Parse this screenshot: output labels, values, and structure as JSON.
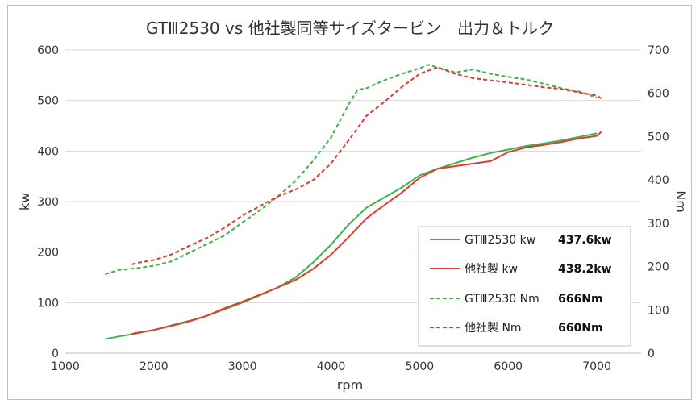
{
  "chart_data": {
    "type": "line",
    "title": "GTⅢ2530 vs 他社製同等サイズタービン　出力＆トルク",
    "xlabel": "rpm",
    "ylabel_left": "kw",
    "ylabel_right": "Nm",
    "xlim": [
      1000,
      7500
    ],
    "ylim_left": [
      0,
      600
    ],
    "ylim_right": [
      0,
      700
    ],
    "x_ticks": [
      "1000",
      "2000",
      "3000",
      "4000",
      "5000",
      "6000",
      "7000"
    ],
    "y_left_ticks": [
      "0",
      "100",
      "200",
      "300",
      "400",
      "500",
      "600"
    ],
    "y_right_ticks": [
      "0",
      "100",
      "200",
      "300",
      "400",
      "500",
      "600",
      "700"
    ],
    "grid": true,
    "legend_position": "bottom-right",
    "series": [
      {
        "name": "GTⅢ2530 kw",
        "peak_label": "437.6kw",
        "axis": "left",
        "style": "solid",
        "color": "#3db34a",
        "x": [
          1450,
          1600,
          1800,
          2000,
          2200,
          2400,
          2600,
          2800,
          3000,
          3200,
          3400,
          3600,
          3800,
          4000,
          4200,
          4400,
          4600,
          4800,
          5000,
          5200,
          5400,
          5600,
          5800,
          6000,
          6200,
          6400,
          6600,
          6800,
          7000
        ],
        "y": [
          28,
          33,
          39,
          46,
          55,
          64,
          74,
          87,
          100,
          115,
          130,
          150,
          180,
          215,
          255,
          288,
          308,
          328,
          352,
          365,
          376,
          387,
          396,
          403,
          410,
          415,
          421,
          428,
          435
        ]
      },
      {
        "name": "他社製 kw",
        "peak_label": "438.2kw",
        "axis": "left",
        "style": "solid",
        "color": "#e03c31",
        "x": [
          1750,
          1800,
          2000,
          2200,
          2400,
          2600,
          2800,
          3000,
          3200,
          3400,
          3600,
          3800,
          4000,
          4200,
          4400,
          4600,
          4800,
          5000,
          5200,
          5400,
          5600,
          5800,
          6000,
          6200,
          6400,
          6600,
          6800,
          7000,
          7050
        ],
        "y": [
          38,
          40,
          46,
          54,
          63,
          74,
          89,
          102,
          116,
          130,
          145,
          167,
          195,
          230,
          267,
          293,
          318,
          347,
          365,
          370,
          375,
          380,
          398,
          407,
          412,
          418,
          425,
          430,
          438
        ]
      },
      {
        "name": "GTⅢ2530 Nm",
        "peak_label": "666Nm",
        "axis": "right",
        "style": "dashed",
        "color": "#3db34a",
        "x": [
          1450,
          1600,
          1800,
          2000,
          2200,
          2400,
          2600,
          2800,
          3000,
          3200,
          3400,
          3600,
          3800,
          4000,
          4200,
          4300,
          4400,
          4600,
          4800,
          5000,
          5100,
          5200,
          5400,
          5600,
          5800,
          6000,
          6200,
          6400,
          6600,
          6800,
          7000
        ],
        "y": [
          182,
          192,
          196,
          202,
          212,
          232,
          252,
          272,
          302,
          330,
          362,
          398,
          445,
          498,
          575,
          608,
          612,
          630,
          645,
          658,
          666,
          660,
          648,
          655,
          645,
          638,
          632,
          622,
          612,
          604,
          590
        ]
      },
      {
        "name": "他社製 Nm",
        "peak_label": "660Nm",
        "axis": "right",
        "style": "dashed",
        "color": "#e03c31",
        "x": [
          1750,
          1800,
          2000,
          2200,
          2400,
          2600,
          2800,
          3000,
          3200,
          3400,
          3600,
          3800,
          4000,
          4200,
          4400,
          4600,
          4800,
          5000,
          5200,
          5400,
          5600,
          5800,
          6000,
          6200,
          6400,
          6600,
          6800,
          7000,
          7050
        ],
        "y": [
          205,
          208,
          215,
          228,
          248,
          266,
          290,
          318,
          340,
          362,
          378,
          400,
          438,
          492,
          548,
          580,
          615,
          645,
          660,
          645,
          635,
          630,
          625,
          620,
          614,
          610,
          602,
          595,
          588
        ]
      }
    ]
  }
}
